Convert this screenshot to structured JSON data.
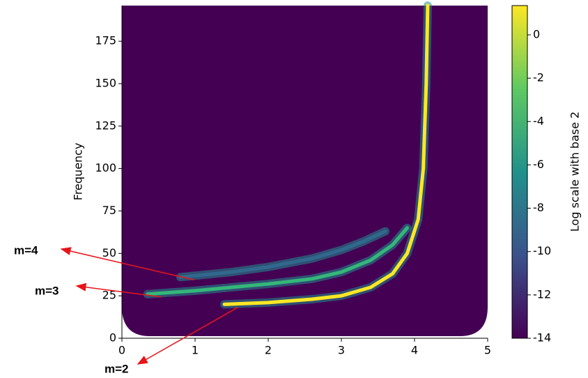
{
  "chart_data": {
    "type": "line",
    "y_label": "Frequency",
    "xlim": [
      0,
      5
    ],
    "xticks": [
      0,
      1,
      2,
      3,
      4,
      5
    ],
    "ylim": [
      0,
      196
    ],
    "yticks": [
      0,
      25,
      50,
      75,
      100,
      125,
      150,
      175
    ],
    "colorbar": {
      "label": "Log scale with base 2",
      "lim": [
        -14,
        1.35
      ],
      "ticks": [
        -14,
        -12,
        -10,
        -8,
        -6,
        -4,
        -2,
        0
      ]
    },
    "series": [
      {
        "name": "m=2",
        "color": "#fde725",
        "x": [
          1.4,
          2.0,
          2.6,
          3.0,
          3.4,
          3.7,
          3.9,
          4.05,
          4.12,
          4.16,
          4.18
        ],
        "values": [
          20,
          21,
          23,
          25,
          30,
          38,
          50,
          70,
          100,
          150,
          196
        ]
      },
      {
        "name": "m=3",
        "color": "#35b779",
        "x": [
          0.35,
          1.0,
          2.0,
          2.6,
          3.0,
          3.4,
          3.7,
          3.9
        ],
        "values": [
          26,
          28,
          32,
          35,
          39,
          46,
          55,
          65
        ]
      },
      {
        "name": "m=4",
        "color": "#31688e",
        "x": [
          0.8,
          1.5,
          2.0,
          2.6,
          3.0,
          3.3,
          3.6
        ],
        "values": [
          36,
          39,
          42,
          47,
          52,
          57,
          63
        ]
      }
    ]
  }
}
